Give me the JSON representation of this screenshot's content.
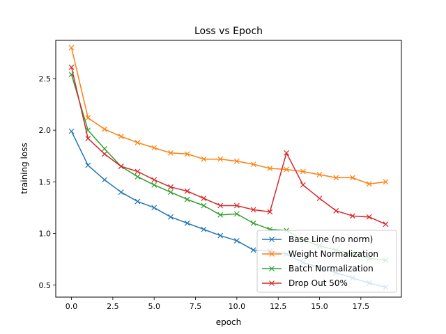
{
  "chart_data": {
    "type": "line",
    "title": "Loss vs Epoch",
    "xlabel": "epoch",
    "ylabel": "training loss",
    "xlim": [
      -0.95,
      19.95
    ],
    "ylim": [
      0.384,
      2.87
    ],
    "xticks": [
      0.0,
      2.5,
      5.0,
      7.5,
      10.0,
      12.5,
      15.0,
      17.5
    ],
    "xtick_labels": [
      "0.0",
      "2.5",
      "5.0",
      "7.5",
      "10.0",
      "12.5",
      "15.0",
      "17.5"
    ],
    "yticks": [
      0.5,
      1.0,
      1.5,
      2.0,
      2.5
    ],
    "ytick_labels": [
      "0.5",
      "1.0",
      "1.5",
      "2.0",
      "2.5"
    ],
    "grid": false,
    "legend_position": "lower right",
    "marker": "x",
    "x": [
      0,
      1,
      2,
      3,
      4,
      5,
      6,
      7,
      8,
      9,
      10,
      11,
      12,
      13,
      14,
      15,
      16,
      17,
      18,
      19
    ],
    "series": [
      {
        "name": "Base Line (no norm)",
        "color": "#1f77b4",
        "values": [
          1.99,
          1.66,
          1.52,
          1.4,
          1.31,
          1.25,
          1.16,
          1.1,
          1.04,
          0.98,
          0.93,
          0.84,
          0.83,
          0.8,
          0.72,
          0.67,
          0.62,
          0.57,
          0.52,
          0.48
        ]
      },
      {
        "name": "Weight Normalization",
        "color": "#ff7f0e",
        "values": [
          2.8,
          2.12,
          2.01,
          1.94,
          1.88,
          1.83,
          1.78,
          1.77,
          1.72,
          1.72,
          1.7,
          1.67,
          1.63,
          1.62,
          1.6,
          1.57,
          1.54,
          1.54,
          1.48,
          1.5
        ]
      },
      {
        "name": "Batch Normalization",
        "color": "#2ca02c",
        "values": [
          2.54,
          2.0,
          1.82,
          1.65,
          1.55,
          1.47,
          1.4,
          1.33,
          1.27,
          1.18,
          1.19,
          1.1,
          1.04,
          1.03,
          0.94,
          0.88,
          0.84,
          0.8,
          0.76,
          0.74
        ]
      },
      {
        "name": "Drop Out 50%",
        "color": "#d62728",
        "values": [
          2.61,
          1.92,
          1.77,
          1.65,
          1.6,
          1.52,
          1.45,
          1.41,
          1.34,
          1.27,
          1.27,
          1.23,
          1.21,
          1.78,
          1.47,
          1.34,
          1.22,
          1.17,
          1.16,
          1.09
        ]
      }
    ]
  }
}
